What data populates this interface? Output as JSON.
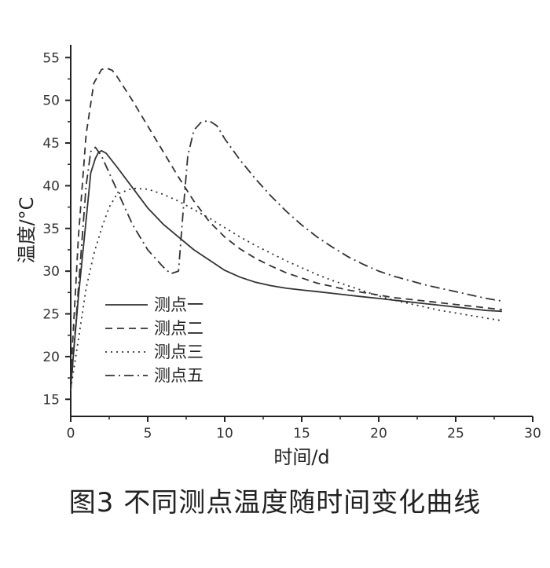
{
  "caption": "图3   不同测点温度随时间变化曲线",
  "chart_data": {
    "type": "line",
    "xlabel": "时间/d",
    "ylabel": "温度/°C",
    "xlim": [
      0,
      30
    ],
    "ylim": [
      13,
      56.5
    ],
    "xticks": [
      0,
      5,
      10,
      15,
      20,
      25,
      30
    ],
    "yticks": [
      15,
      20,
      25,
      30,
      35,
      40,
      45,
      50,
      55
    ],
    "grid": false,
    "legend_position": "bottom-left",
    "series": [
      {
        "name": "测点一",
        "style": "solid",
        "color": "#333333",
        "x": [
          0,
          0.5,
          1,
          1.3,
          1.6,
          1.8,
          2,
          2.3,
          3,
          4,
          5,
          6,
          7,
          8,
          9,
          10,
          11,
          12,
          13,
          14,
          15,
          16,
          17,
          18,
          19,
          20,
          21,
          22,
          23,
          24,
          25,
          26,
          27,
          28
        ],
        "y": [
          16.5,
          27,
          36,
          41.5,
          43.2,
          43.9,
          44.1,
          43.8,
          42.2,
          39.8,
          37.4,
          35.5,
          34,
          32.5,
          31.3,
          30.1,
          29.3,
          28.7,
          28.3,
          28,
          27.8,
          27.6,
          27.4,
          27.2,
          27,
          26.8,
          26.6,
          26.4,
          26.2,
          26,
          25.8,
          25.6,
          25.4,
          25.3
        ]
      },
      {
        "name": "测点二",
        "style": "dashed",
        "color": "#333333",
        "x": [
          0,
          0.5,
          1,
          1.5,
          2,
          2.3,
          2.7,
          3,
          4,
          5,
          6,
          7,
          8,
          9,
          10,
          11,
          12,
          13,
          14,
          15,
          16,
          17,
          18,
          19,
          20,
          21,
          22,
          23,
          24,
          25,
          26,
          27,
          28
        ],
        "y": [
          17.5,
          34,
          46,
          52,
          53.6,
          53.8,
          53.5,
          52.8,
          50,
          47,
          44,
          41,
          38.2,
          35.8,
          34,
          32.6,
          31.5,
          30.6,
          29.8,
          29.2,
          28.6,
          28.2,
          27.8,
          27.5,
          27.2,
          26.9,
          26.7,
          26.5,
          26.3,
          26.1,
          25.9,
          25.7,
          25.5
        ]
      },
      {
        "name": "测点三",
        "style": "dotted",
        "color": "#333333",
        "x": [
          0,
          0.5,
          1,
          1.5,
          2,
          2.5,
          3,
          4,
          5,
          6,
          7,
          8,
          9,
          10,
          11,
          12,
          13,
          14,
          15,
          16,
          17,
          18,
          19,
          20,
          21,
          22,
          23,
          24,
          25,
          26,
          27,
          28
        ],
        "y": [
          16.2,
          22,
          28,
          32,
          35,
          37.5,
          39,
          39.7,
          39.6,
          39,
          38.2,
          37.2,
          36.2,
          35.1,
          34,
          33,
          32.1,
          31.2,
          30.4,
          29.6,
          28.9,
          28.3,
          27.7,
          27.1,
          26.6,
          26.2,
          25.8,
          25.4,
          25.1,
          24.8,
          24.5,
          24.2
        ]
      },
      {
        "name": "测点五",
        "style": "dashdot",
        "color": "#333333",
        "x": [
          0,
          0.5,
          1,
          1.3,
          1.6,
          2,
          3,
          4,
          5,
          6,
          6.5,
          7,
          7.3,
          7.6,
          8,
          8.5,
          9,
          9.5,
          10,
          11,
          12,
          13,
          14,
          15,
          16,
          17,
          18,
          19,
          20,
          21,
          22,
          23,
          24,
          25,
          26,
          27,
          28
        ],
        "y": [
          16,
          28,
          40,
          44,
          44.5,
          43.5,
          39.5,
          35.5,
          32.5,
          30.5,
          29.7,
          30,
          37,
          43.5,
          46.5,
          47.5,
          47.6,
          47,
          45.5,
          43,
          40.8,
          38.8,
          37,
          35.4,
          34,
          32.8,
          31.7,
          30.8,
          30,
          29.4,
          28.9,
          28.4,
          28,
          27.6,
          27.2,
          26.8,
          26.5
        ]
      }
    ]
  }
}
